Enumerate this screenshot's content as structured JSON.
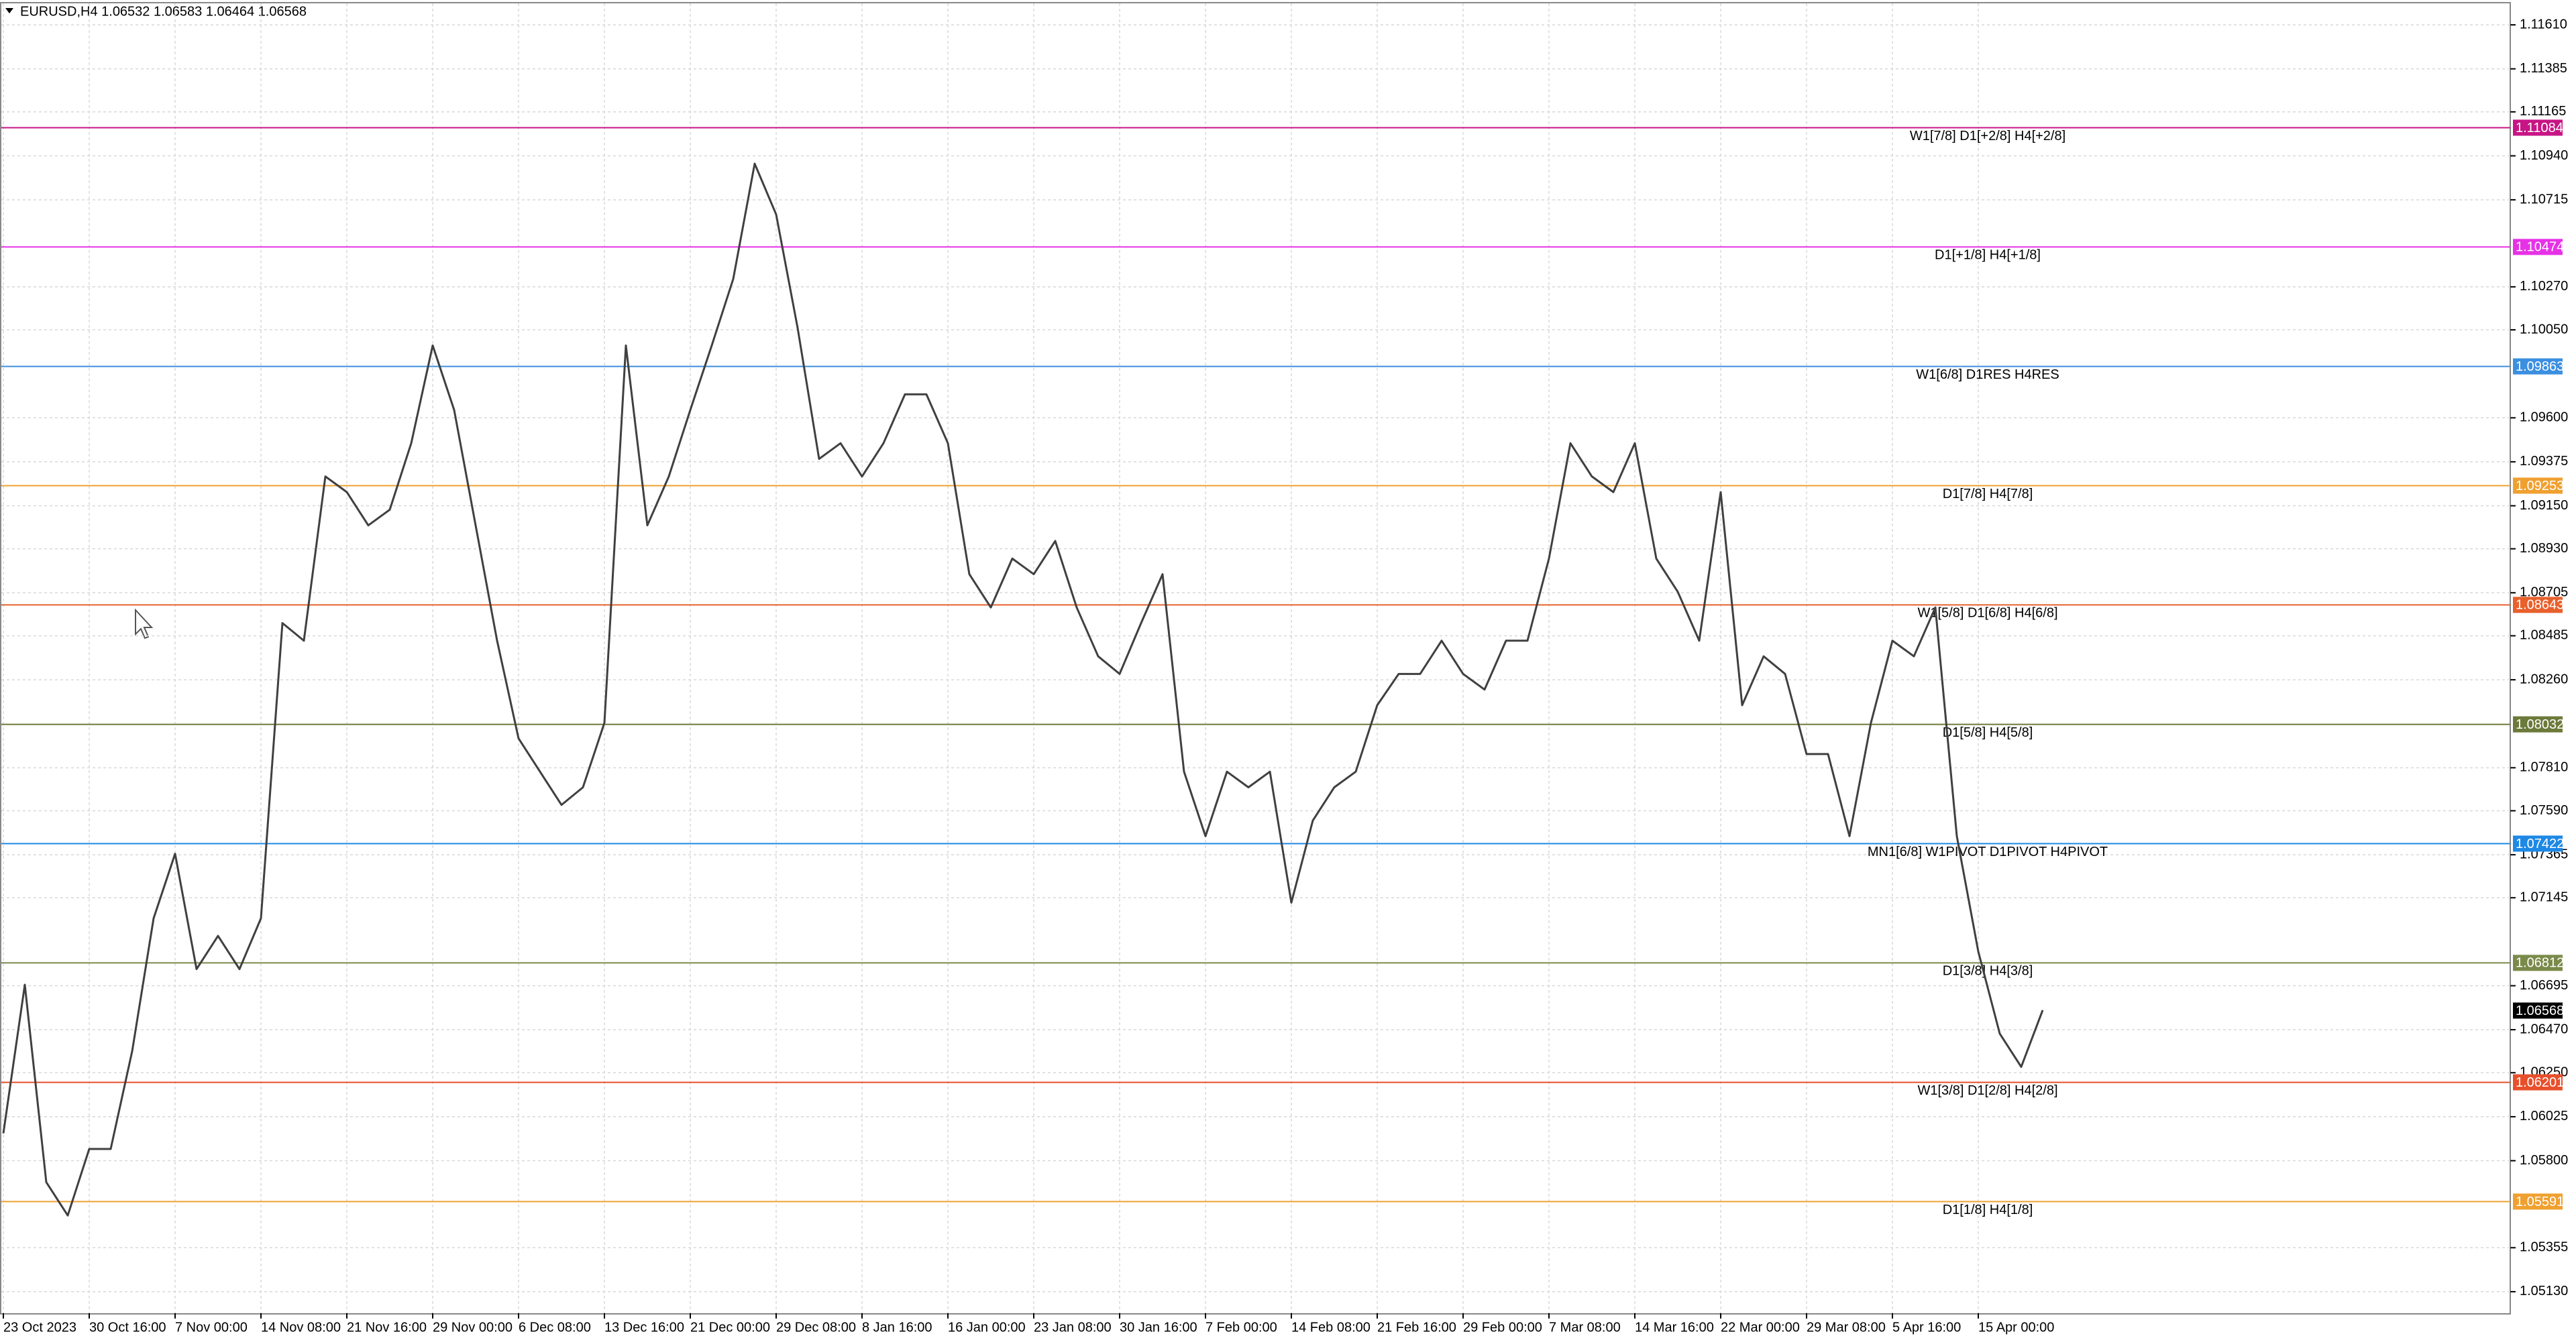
{
  "chart_data": {
    "type": "line",
    "title": "EURUSD,H4  1.06532 1.06583 1.06464 1.06568",
    "color": "#404040",
    "grid": true,
    "categories": [
      "23 Oct 2023",
      null,
      null,
      null,
      "30 Oct 16:00",
      null,
      null,
      null,
      "7 Nov 00:00",
      null,
      null,
      null,
      "14 Nov 08:00",
      null,
      null,
      null,
      "21 Nov 16:00",
      null,
      null,
      null,
      "29 Nov 00:00",
      null,
      null,
      null,
      "6 Dec 08:00",
      null,
      null,
      null,
      "13 Dec 16:00",
      null,
      null,
      null,
      "21 Dec 00:00",
      null,
      null,
      null,
      "29 Dec 08:00",
      null,
      null,
      null,
      "8 Jan 16:00",
      null,
      null,
      null,
      "16 Jan 00:00",
      null,
      null,
      null,
      "23 Jan 08:00",
      null,
      null,
      null,
      "30 Jan 16:00",
      null,
      null,
      null,
      "7 Feb 00:00",
      null,
      null,
      null,
      "14 Feb 08:00",
      null,
      null,
      null,
      "21 Feb 16:00",
      null,
      null,
      null,
      "29 Feb 00:00",
      null,
      null,
      null,
      "7 Mar 08:00",
      null,
      null,
      null,
      "14 Mar 16:00",
      null,
      null,
      null,
      "22 Mar 00:00",
      null,
      null,
      null,
      "29 Mar 08:00",
      null,
      null,
      null,
      "5 Apr 16:00",
      null,
      null,
      null,
      "15 Apr 00:00",
      null,
      null,
      null
    ],
    "values": [
      1.0594,
      1.067,
      1.0569,
      1.0552,
      1.0586,
      1.0586,
      1.0636,
      1.0704,
      1.0737,
      1.0678,
      1.0695,
      1.0678,
      1.0704,
      1.0855,
      1.0846,
      1.093,
      1.0922,
      1.0905,
      1.0913,
      1.0947,
      1.0997,
      1.0964,
      1.0905,
      1.0846,
      1.0796,
      1.0779,
      1.0762,
      1.0771,
      1.0804,
      1.0997,
      1.0905,
      1.093,
      1.0964,
      1.0997,
      1.1031,
      1.109,
      1.1064,
      1.1006,
      1.0939,
      1.0947,
      1.093,
      1.0947,
      1.0972,
      1.0972,
      1.0947,
      1.088,
      1.0863,
      1.0888,
      1.088,
      1.0897,
      1.0863,
      1.0838,
      1.0829,
      1.0855,
      1.088,
      1.0779,
      1.0746,
      1.0779,
      1.0771,
      1.0779,
      1.0712,
      1.0754,
      1.0771,
      1.0779,
      1.0813,
      1.0829,
      1.0829,
      1.0846,
      1.0829,
      1.0821,
      1.0846,
      1.0846,
      1.0888,
      1.0947,
      1.093,
      1.0922,
      1.0947,
      1.0888,
      1.0871,
      1.0846,
      1.0922,
      1.0813,
      1.0838,
      1.0829,
      1.0788,
      1.0788,
      1.0746,
      1.0804,
      1.0846,
      1.0838,
      1.0863,
      1.0746,
      1.0687,
      1.0645,
      1.0628,
      1.0657
    ],
    "ylim": [
      1.0502,
      1.1172
    ],
    "yticks": [
      {
        "value": 1.1161,
        "label": "1.11610"
      },
      {
        "value": 1.11385,
        "label": "1.11385"
      },
      {
        "value": 1.11165,
        "label": "1.11165"
      },
      {
        "value": 1.1094,
        "label": "1.10940"
      },
      {
        "value": 1.10715,
        "label": "1.10715"
      },
      {
        "value": 1.1027,
        "label": "1.10270"
      },
      {
        "value": 1.1005,
        "label": "1.10050"
      },
      {
        "value": 1.096,
        "label": "1.09600"
      },
      {
        "value": 1.09375,
        "label": "1.09375"
      },
      {
        "value": 1.0915,
        "label": "1.09150"
      },
      {
        "value": 1.0893,
        "label": "1.08930"
      },
      {
        "value": 1.08705,
        "label": "1.08705"
      },
      {
        "value": 1.08485,
        "label": "1.08485"
      },
      {
        "value": 1.0826,
        "label": "1.08260"
      },
      {
        "value": 1.0781,
        "label": "1.07810"
      },
      {
        "value": 1.0759,
        "label": "1.07590"
      },
      {
        "value": 1.07365,
        "label": "1.07365"
      },
      {
        "value": 1.07145,
        "label": "1.07145"
      },
      {
        "value": 1.06695,
        "label": "1.06695"
      },
      {
        "value": 1.0647,
        "label": "1.06470"
      },
      {
        "value": 1.0625,
        "label": "1.06250"
      },
      {
        "value": 1.06025,
        "label": "1.06025"
      },
      {
        "value": 1.058,
        "label": "1.05800"
      },
      {
        "value": 1.05355,
        "label": "1.05355"
      },
      {
        "value": 1.0513,
        "label": "1.05130"
      }
    ],
    "levels": [
      {
        "label": "W1[7/8] D1[+2/8] H4[+2/8]",
        "price": {
          "value": 1.11084,
          "label": "1.11084"
        },
        "color": "#c71585"
      },
      {
        "label": "D1[+1/8] H4[+1/8]",
        "price": {
          "value": 1.10474,
          "label": "1.10474"
        },
        "color": "#e632e6"
      },
      {
        "label": "W1[6/8] D1RES H4RES",
        "price": {
          "value": 1.09863,
          "label": "1.09863"
        },
        "color": "#3c8fe0"
      },
      {
        "label": "D1[7/8] H4[7/8]",
        "price": {
          "value": 1.09253,
          "label": "1.09253"
        },
        "color": "#f0a030"
      },
      {
        "label": "W1[5/8] D1[6/8] H4[6/8]",
        "price": {
          "value": 1.08643,
          "label": "1.08643"
        },
        "color": "#e8602c"
      },
      {
        "label": "D1[5/8] H4[5/8]",
        "price": {
          "value": 1.08032,
          "label": "1.08032"
        },
        "color": "#6b7a3a"
      },
      {
        "label": "MN1[6/8] W1PIVOT D1PIVOT H4PIVOT",
        "price": {
          "value": 1.07422,
          "label": "1.07422"
        },
        "color": "#1e88e5"
      },
      {
        "label": "D1[3/8] H4[3/8]",
        "price": {
          "value": 1.06812,
          "label": "1.06812"
        },
        "color": "#7a8a4a"
      },
      {
        "label": "W1[3/8] D1[2/8] H4[2/8]",
        "price": {
          "value": 1.06201,
          "label": "1.06201"
        },
        "color": "#e8502c"
      },
      {
        "label": "D1[1/8] H4[1/8]",
        "price": {
          "value": 1.05591,
          "label": "1.05591"
        },
        "color": "#f0a030"
      }
    ],
    "last_price": {
      "value": 1.06568,
      "label": "1.06568"
    }
  }
}
